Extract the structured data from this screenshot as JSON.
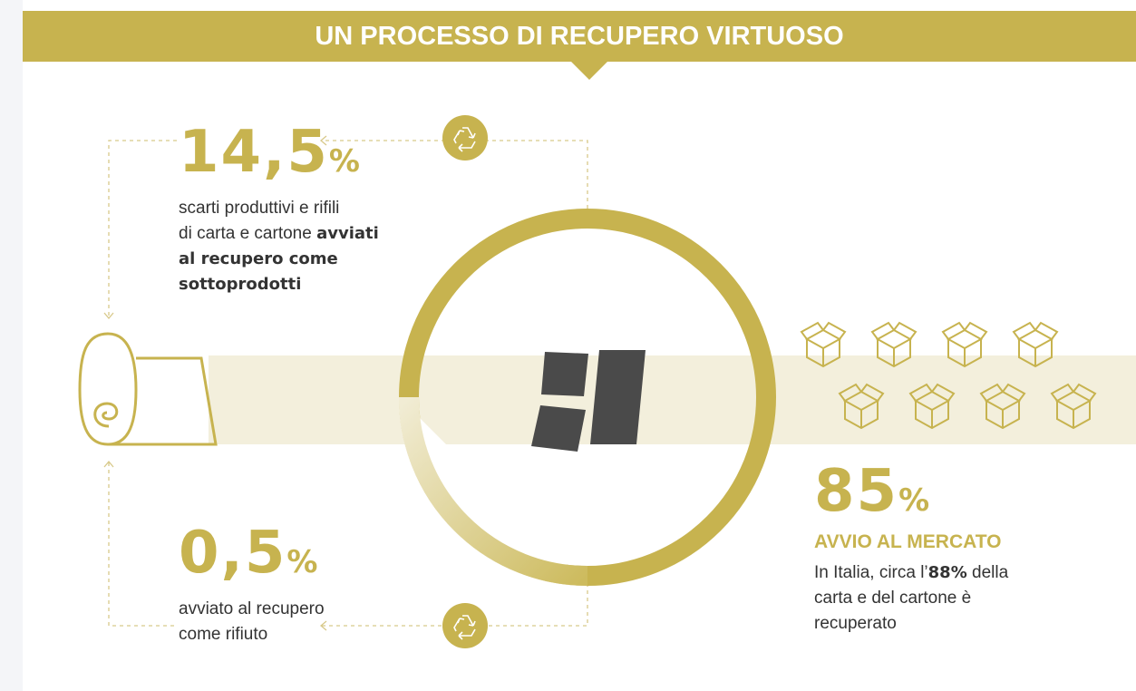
{
  "header": {
    "title": "UN PROCESSO DI RECUPERO VIRTUOSO"
  },
  "stats": [
    {
      "number": "14,5",
      "unit": "%",
      "lines": [
        [
          {
            "text": "scarti produttivi e rifili"
          }
        ],
        [
          {
            "text": "di carta e cartone "
          },
          {
            "text": "avviati",
            "bold": true
          }
        ],
        [
          {
            "text": "al recupero come",
            "bold": true
          }
        ],
        [
          {
            "text": "sottoprodotti",
            "bold": true
          }
        ]
      ]
    },
    {
      "number": "0,5",
      "unit": "%",
      "lines": [
        [
          {
            "text": "avviato al recupero"
          }
        ],
        [
          {
            "text": "come rifiuto"
          }
        ]
      ]
    },
    {
      "number": "85",
      "unit": "%",
      "heading": "AVVIO AL MERCATO",
      "lines": [
        [
          {
            "text": "In Italia, circa l’"
          },
          {
            "text": "88%",
            "bold": true
          },
          {
            "text": " della"
          }
        ],
        [
          {
            "text": "carta e del cartone è"
          }
        ],
        [
          {
            "text": "recuperato"
          }
        ]
      ]
    }
  ]
}
